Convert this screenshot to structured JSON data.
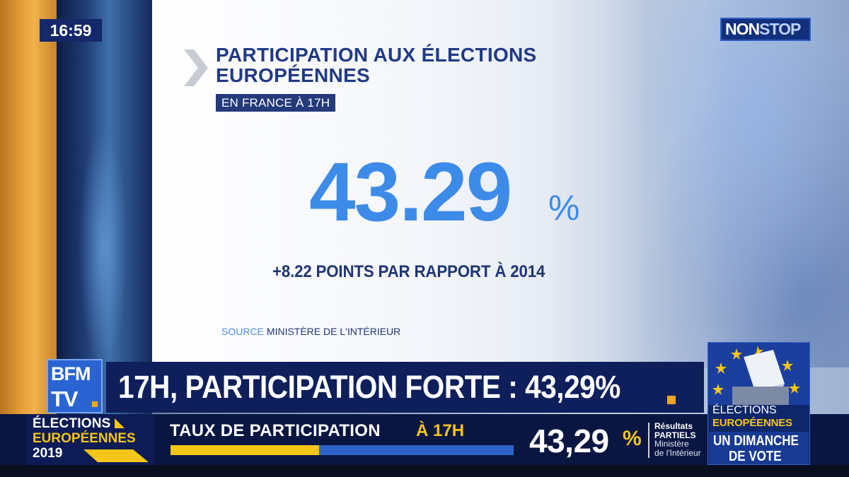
{
  "clock": {
    "time": "16:59"
  },
  "channel_badge": {
    "part1": "NON",
    "part2": "STOP"
  },
  "card": {
    "title": "PARTICIPATION AUX ÉLECTIONS EUROPÉENNES",
    "subtitle": "EN FRANCE À 17H",
    "value": "43.29",
    "unit": "%",
    "delta": "+8.22 POINTS PAR RAPPORT À 2014",
    "source_label": "SOURCE",
    "source_text": "MINISTÈRE DE L'INTÉRIEUR"
  },
  "logo": {
    "line1": "BFM",
    "line2": "TV"
  },
  "headline": {
    "text": "17H, PARTICIPATION FORTE : 43,29%"
  },
  "lower_left": {
    "line1": "ÉLECTIONS",
    "line2": "EUROPÉENNES",
    "line3": "2019"
  },
  "ticker": {
    "label": "TAUX DE PARTICIPATION",
    "time": "À 17H",
    "value": "43,29",
    "unit": "%",
    "progress_percent": 43.29,
    "results_line1": "Résultats",
    "results_line2": "PARTIELS",
    "results_src1": "Ministère",
    "results_src2": "de l'Intérieur"
  },
  "election_card": {
    "line1": "ÉLECTIONS",
    "line2": "EUROPÉENNES",
    "line3": "UN DIMANCHE",
    "line4": "DE VOTE"
  },
  "colors": {
    "accent_blue": "#3d8be8",
    "navy": "#1f3672",
    "yellow": "#f5c518",
    "orange": "#f5a623"
  }
}
